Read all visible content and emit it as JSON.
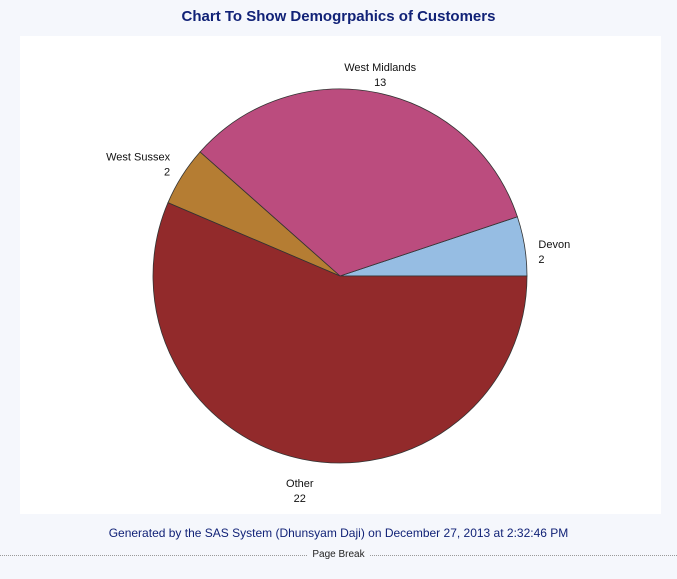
{
  "page": {
    "footer": "Generated by the SAS System (Dhunsyam Daji) on December 27, 2013 at 2:32:46 PM",
    "page_break_label": "Page Break"
  },
  "chart_data": {
    "type": "pie",
    "title": "Chart To Show Demogrpahics of Customers",
    "slices": [
      {
        "label": "Devon",
        "value": 2,
        "color": "#96bde3"
      },
      {
        "label": "West Midlands",
        "value": 13,
        "color": "#bb4c7e"
      },
      {
        "label": "West Sussex",
        "value": 2,
        "color": "#b57d33"
      },
      {
        "label": "Other",
        "value": 22,
        "color": "#922a2b"
      }
    ],
    "direction": "counterclockwise",
    "start": "3 o'clock"
  }
}
